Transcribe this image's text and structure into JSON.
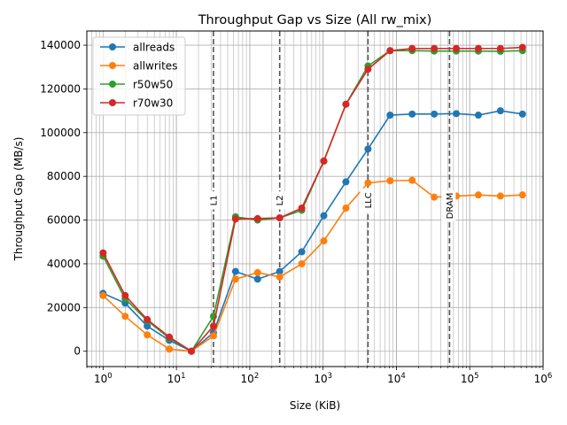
{
  "chart_data": {
    "type": "line",
    "title": "Throughput Gap vs Size (All rw_mix)",
    "xlabel": "Size (KiB)",
    "ylabel": "Throughput Gap (MB/s)",
    "xscale": "log",
    "xlim": [
      0.6,
      1000000
    ],
    "ylim": [
      -7000,
      146500
    ],
    "x_ticks": [
      {
        "value": 1,
        "base": "10",
        "exp": "0"
      },
      {
        "value": 10,
        "base": "10",
        "exp": "1"
      },
      {
        "value": 100,
        "base": "10",
        "exp": "2"
      },
      {
        "value": 1000,
        "base": "10",
        "exp": "3"
      },
      {
        "value": 10000,
        "base": "10",
        "exp": "4"
      },
      {
        "value": 100000,
        "base": "10",
        "exp": "5"
      },
      {
        "value": 1000000,
        "base": "10",
        "exp": "6"
      }
    ],
    "y_ticks": [
      0,
      20000,
      40000,
      60000,
      80000,
      100000,
      120000,
      140000
    ],
    "y_tick_labels": [
      "0",
      "20000",
      "40000",
      "60000",
      "80000",
      "100000",
      "120000",
      "140000"
    ],
    "grid": "on (major and minor x, major y)",
    "legend_position": "upper-left",
    "x": [
      1,
      2,
      4,
      8,
      16,
      32,
      64,
      128,
      256,
      512,
      1024,
      2048,
      4096,
      8192,
      16384,
      32768,
      65536,
      131072,
      262144,
      524288
    ],
    "series": [
      {
        "name": "allreads",
        "color": "#1f77b4",
        "values": [
          26500,
          22000,
          11500,
          5000,
          0,
          8500,
          36500,
          33000,
          36500,
          45500,
          62000,
          77500,
          92500,
          108000,
          108500,
          108500,
          108700,
          108000,
          110000,
          108500
        ]
      },
      {
        "name": "allwrites",
        "color": "#ff7f0e",
        "values": [
          25500,
          16000,
          7500,
          1000,
          0,
          7000,
          33000,
          36000,
          34000,
          40000,
          50500,
          65500,
          77000,
          78000,
          78200,
          70500,
          71000,
          71500,
          71000,
          71500
        ]
      },
      {
        "name": "r50w50",
        "color": "#2ca02c",
        "values": [
          43500,
          24000,
          14000,
          6000,
          0,
          16000,
          61500,
          60000,
          61000,
          64500,
          87000,
          113000,
          130500,
          137500,
          137500,
          137300,
          137300,
          137300,
          137200,
          137500
        ]
      },
      {
        "name": "r70w30",
        "color": "#d62728",
        "values": [
          45000,
          25500,
          14500,
          6500,
          0,
          11500,
          60500,
          60700,
          61000,
          65500,
          87000,
          113000,
          129000,
          137500,
          138500,
          138500,
          138500,
          138500,
          138500,
          139000
        ]
      }
    ],
    "annotations": [
      {
        "x": 32,
        "label": "L1",
        "y": 69000
      },
      {
        "x": 256,
        "label": "L2",
        "y": 69000
      },
      {
        "x": 4096,
        "label": "LLC",
        "y": 69000
      },
      {
        "x": 53000,
        "label": "DRAM",
        "y": 66500
      }
    ]
  }
}
